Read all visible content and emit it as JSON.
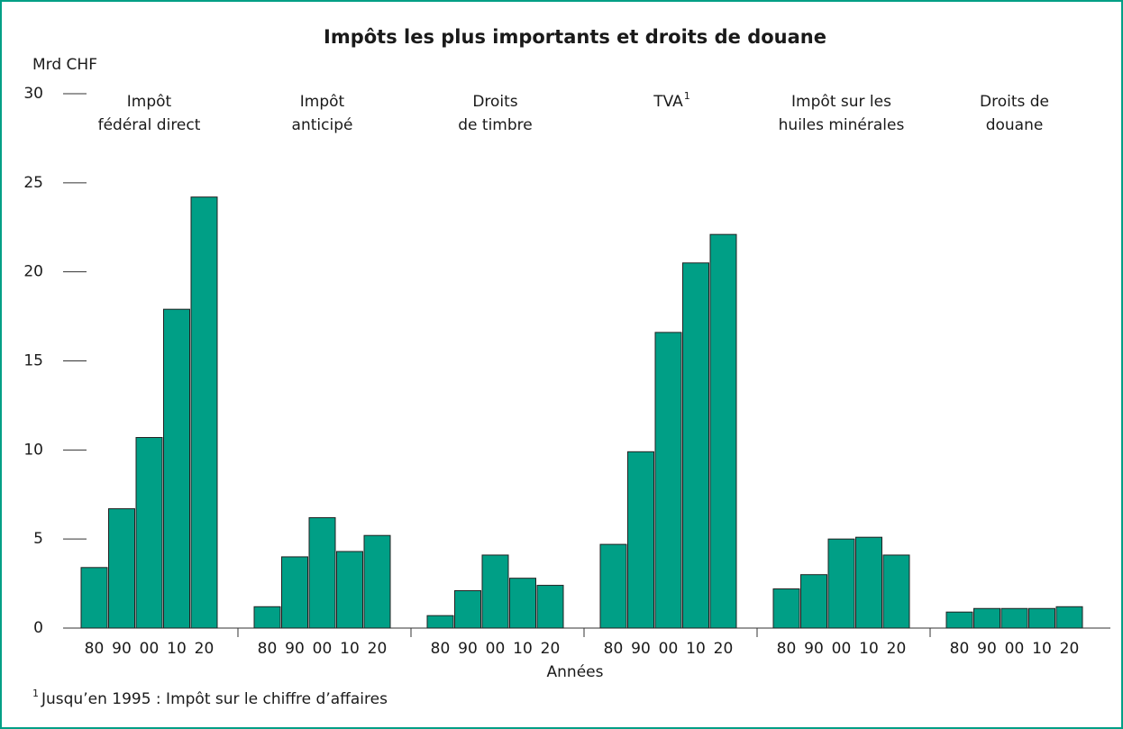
{
  "chart_data": {
    "type": "bar",
    "title": "Impôts les plus importants et droits de douane",
    "y_label": "Mrd CHF",
    "x_label": "Années",
    "bar_labels": [
      "80",
      "90",
      "00",
      "10",
      "20"
    ],
    "groups": [
      {
        "label": [
          "Impôt",
          "fédéral direct"
        ],
        "values": [
          3.4,
          6.7,
          10.7,
          17.9,
          24.2
        ]
      },
      {
        "label": [
          "Impôt",
          "anticipé"
        ],
        "values": [
          1.2,
          4.0,
          6.2,
          4.3,
          5.2
        ]
      },
      {
        "label": [
          "Droits",
          "de timbre"
        ],
        "values": [
          0.7,
          2.1,
          4.1,
          2.8,
          2.4
        ]
      },
      {
        "label": [
          "TVA"
        ],
        "note": "1",
        "values": [
          4.7,
          9.9,
          16.6,
          20.5,
          22.1
        ]
      },
      {
        "label": [
          "Impôt sur les",
          "huiles minérales"
        ],
        "values": [
          2.2,
          3.0,
          5.0,
          5.1,
          4.1
        ]
      },
      {
        "label": [
          "Droits de",
          "douane"
        ],
        "values": [
          0.9,
          1.1,
          1.1,
          1.1,
          1.2
        ]
      }
    ],
    "color": "#009f86",
    "ylim": [
      0,
      30
    ],
    "yticks": [
      0,
      5,
      10,
      15,
      20,
      25,
      30
    ],
    "footnote": {
      "marker": "1",
      "text": "Jusqu’en 1995 : Impôt sur le chiffre d’affaires"
    }
  }
}
